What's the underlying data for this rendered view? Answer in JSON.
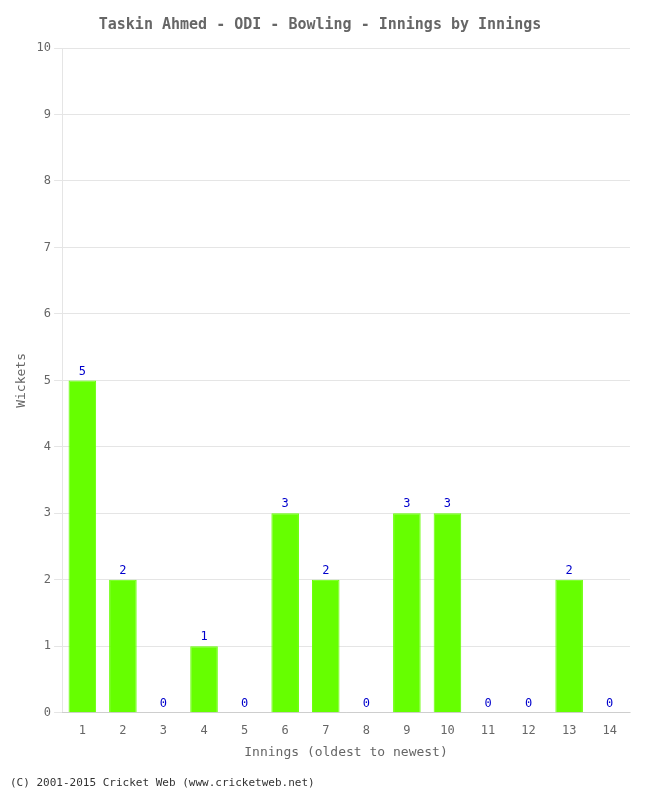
{
  "chart_data": {
    "type": "bar",
    "title": "Taskin Ahmed - ODI - Bowling - Innings by Innings",
    "x_label": "Innings (oldest to newest)",
    "y_label": "Wickets",
    "categories": [
      "1",
      "2",
      "3",
      "4",
      "5",
      "6",
      "7",
      "8",
      "9",
      "10",
      "11",
      "12",
      "13",
      "14"
    ],
    "values": [
      5,
      2,
      0,
      1,
      0,
      3,
      2,
      0,
      3,
      3,
      0,
      0,
      2,
      0
    ],
    "color": "#66ff00",
    "ylim": [
      0,
      10
    ],
    "yticks": [
      0,
      1,
      2,
      3,
      4,
      5,
      6,
      7,
      8,
      9,
      10
    ],
    "grid": true,
    "data_labels": true,
    "annotations": [
      "(C) 2001-2015 Cricket Web (www.cricketweb.net)"
    ]
  }
}
